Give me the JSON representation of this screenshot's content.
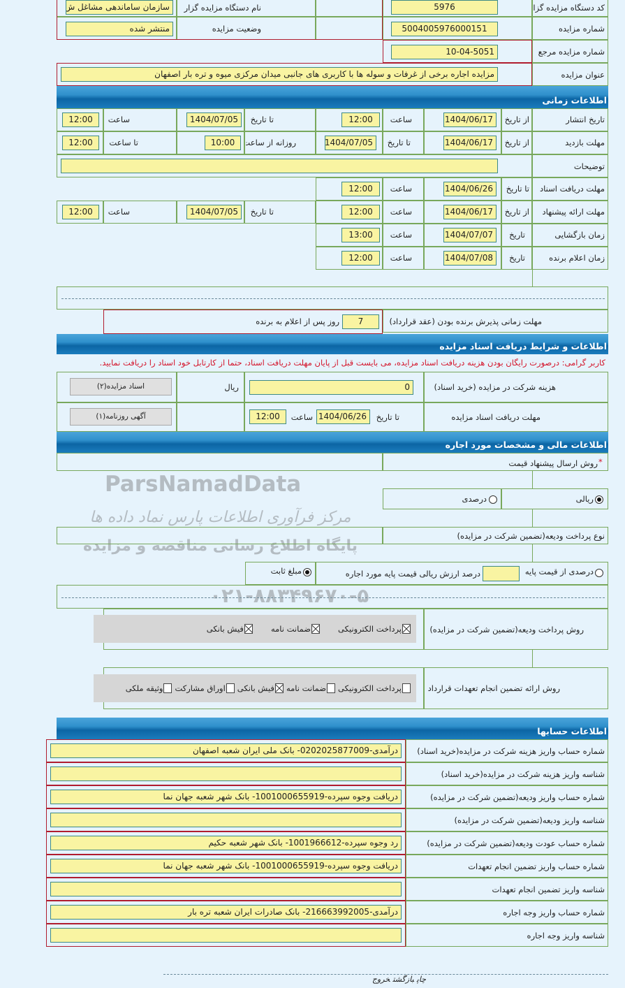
{
  "top": {
    "org_code_label": "کد دستگاه مزایده گزار",
    "org_code": "5976",
    "org_name_label": "نام دستگاه مزایده گزار",
    "org_name": "سازمان ساماندهی مشاغل ش",
    "auction_number_label": "شماره مزایده",
    "auction_number": "5004005976000151",
    "status_label": "وضعیت مزایده",
    "status": "منتشر شده",
    "ref_number_label": "شماره مزایده مرجع",
    "ref_number": "10-04-5051",
    "title_label": "عنوان مزایده",
    "title": "مزایده اجاره برخی از غرفات و سوله ها با کاربری های جانبی میدان مرکزی میوه و تره بار اصفهان"
  },
  "time_section": {
    "title": "اطلاعات زمانی",
    "publish": {
      "label": "تاریخ انتشار",
      "from_label": "از تاریخ",
      "from_date": "1404/06/17",
      "time_label": "ساعت",
      "from_time": "12:00",
      "to_label": "تا تاریخ",
      "to_date": "1404/07/05",
      "to_time_label": "ساعت",
      "to_time": "12:00"
    },
    "visit": {
      "label": "مهلت بازدید",
      "from_label": "از تاریخ",
      "from_date": "1404/06/17",
      "to_label": "تا تاریخ",
      "to_date": "1404/07/05",
      "daily_from_label": "روزانه از ساعت",
      "daily_from": "10:00",
      "daily_to_label": "تا ساعت",
      "daily_to": "12:00"
    },
    "description": {
      "label": "توضیحات",
      "value": ""
    },
    "doc_deadline": {
      "label": "مهلت دریافت اسناد",
      "to_label": "تا تاریخ",
      "to_date": "1404/06/26",
      "time_label": "ساعت",
      "time": "12:00"
    },
    "offer": {
      "label": "مهلت ارائه پیشنهاد",
      "from_label": "از تاریخ",
      "from_date": "1404/06/17",
      "time_label": "ساعت",
      "from_time": "12:00",
      "to_label": "تا تاریخ",
      "to_date": "1404/07/05",
      "to_time_label": "ساعت",
      "to_time": "12:00"
    },
    "opening": {
      "label": "زمان بازگشایی",
      "date_label": "تاریخ",
      "date": "1404/07/07",
      "time_label": "ساعت",
      "time": "13:00"
    },
    "winner": {
      "label": "زمان اعلام برنده",
      "date_label": "تاریخ",
      "date": "1404/07/08",
      "time_label": "ساعت",
      "time": "12:00"
    },
    "acceptance": {
      "label": "مهلت زمانی پذیرش برنده بودن (عقد قرارداد)",
      "days": "7",
      "suffix": "روز پس از اعلام به برنده"
    }
  },
  "docs_section": {
    "title": "اطلاعات و شرایط دریافت اسناد مزایده",
    "warning": "کاربر گرامی: درصورت رایگان بودن هزینه دریافت اسناد مزایده، می بایست قبل از پایان مهلت دریافت اسناد، حتما از کارتابل خود اسناد را دریافت نمایید.",
    "fee_label": "هزینه شرکت در مزایده (خرید اسناد)",
    "fee": "0",
    "currency": "ریال",
    "docs_button": "اسناد مزایده(۲)",
    "deadline_label": "مهلت دریافت اسناد مزایده",
    "to_label": "تا تاریخ",
    "to_date": "1404/06/26",
    "time_label": "ساعت",
    "time": "12:00",
    "newspaper_button": "آگهی روزنامه(۱)"
  },
  "finance_section": {
    "title": "اطلاعات مالی و مشخصات مورد اجاره",
    "required_mark": "*",
    "method_label": "روش ارسال پیشنهاد قیمت",
    "price_options": [
      {
        "label": "ریالی",
        "checked": true
      },
      {
        "label": "درصدی",
        "checked": false
      }
    ],
    "deposit_type_label": "نوع پرداخت ودیعه(تضمین شرکت در مزایده)",
    "percent_option": {
      "label": "درصدی از قیمت پایه",
      "checked": false
    },
    "percent_value": "",
    "percent_suffix": "درصد ارزش ریالی قیمت پایه مورد اجاره",
    "fixed_option": {
      "label": "مبلغ ثابت",
      "checked": true
    },
    "deposit_methods_label": "روش پرداخت ودیعه(تضمین شرکت در مزایده)",
    "deposit_methods": [
      {
        "label": "پرداخت الکترونیکی",
        "checked": true
      },
      {
        "label": "ضمانت نامه",
        "checked": true
      },
      {
        "label": "فیش بانکی",
        "checked": true
      }
    ],
    "guarantee_label": "روش ارائه تضمین انجام تعهدات قرارداد",
    "guarantee_methods": [
      {
        "label": "پرداخت الکترونیکی",
        "checked": false
      },
      {
        "label": "ضمانت نامه",
        "checked": false
      },
      {
        "label": "فیش بانکی",
        "checked": true
      },
      {
        "label": "اوراق مشارکت",
        "checked": false
      },
      {
        "label": "وثیقه ملکی",
        "checked": false
      }
    ]
  },
  "accounts_section": {
    "title": "اطلاعات حسابها",
    "rows": [
      {
        "label": "شماره حساب واریز هزینه شرکت در مزایده(خرید اسناد)",
        "value": "درآمدی-0202025877009- بانک ملی ایران شعبه اصفهان"
      },
      {
        "label": "شناسه واریز هزینه شرکت در مزایده(خرید اسناد)",
        "value": ""
      },
      {
        "label": "شماره حساب واریز ودیعه(تضمین شرکت در مزایده)",
        "value": "دریافت وجوه سپرده-1001000655919- بانک شهر شعبه جهان نما"
      },
      {
        "label": "شناسه واریز ودیعه(تضمین شرکت در مزایده)",
        "value": ""
      },
      {
        "label": "شماره حساب عودت ودیعه(تضمین شرکت در مزایده)",
        "value": "رد وجوه سپرده-1001966612- بانک شهر شعبه حکیم"
      },
      {
        "label": "شماره حساب واریز تضمین انجام تعهدات",
        "value": "دریافت وجوه سپرده-1001000655919- بانک شهر شعبه جهان نما"
      },
      {
        "label": "شناسه واریز تضمین انجام تعهدات",
        "value": ""
      },
      {
        "label": "شماره حساب واریز وجه اجاره",
        "value": "درآمدی-216663992005- بانک صادرات ایران شعبه تره بار"
      },
      {
        "label": "شناسه واریز وجه اجاره",
        "value": ""
      }
    ]
  },
  "footer": {
    "print": "چاپ",
    "back": "بازگشت",
    "exit": "خروج"
  },
  "watermark": {
    "brand": "ParsNamadData",
    "line1": "مرکز فرآوری اطلاعات پارس نماد داده ها",
    "line2": "پایگاه اطلاع رسانی مناقصه و مزایده",
    "phone": "۰۲۱-۸۸۳۴۹۶۷۰-۵"
  },
  "colors": {
    "header": "#1572b0",
    "input": "#f9f4a2",
    "warning": "#d4142a",
    "border_green": "#78a85c",
    "border_red": "#b01c2e"
  }
}
